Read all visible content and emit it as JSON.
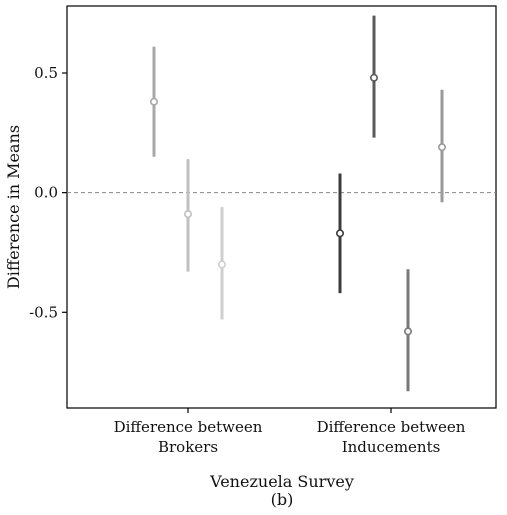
{
  "chart_data": {
    "type": "scatter",
    "ylabel": "Difference in Means",
    "xlabel": "Venezuela Survey",
    "caption": "(b)",
    "ylim": [
      -0.9,
      0.78
    ],
    "yticks": [
      -0.5,
      0.0,
      0.5
    ],
    "ytick_labels": [
      "-0.5",
      "0.0",
      "0.5"
    ],
    "reference_line": 0.0,
    "groups": [
      {
        "label_lines": [
          "Difference between",
          "Brokers"
        ],
        "points": [
          {
            "estimate": 0.38,
            "lower": 0.15,
            "upper": 0.61,
            "color": "#a8a8a8"
          },
          {
            "estimate": -0.09,
            "lower": -0.33,
            "upper": 0.14,
            "color": "#c0c0c0"
          },
          {
            "estimate": -0.3,
            "lower": -0.53,
            "upper": -0.06,
            "color": "#cfcfcf"
          }
        ]
      },
      {
        "label_lines": [
          "Difference between",
          "Inducements"
        ],
        "points": [
          {
            "estimate": -0.17,
            "lower": -0.42,
            "upper": 0.08,
            "color": "#3c3c3c"
          },
          {
            "estimate": 0.48,
            "lower": 0.23,
            "upper": 0.74,
            "color": "#5a5a5a"
          },
          {
            "estimate": -0.58,
            "lower": -0.83,
            "upper": -0.32,
            "color": "#787878"
          },
          {
            "estimate": 0.19,
            "lower": -0.04,
            "upper": 0.43,
            "color": "#9a9a9a"
          }
        ]
      }
    ]
  }
}
